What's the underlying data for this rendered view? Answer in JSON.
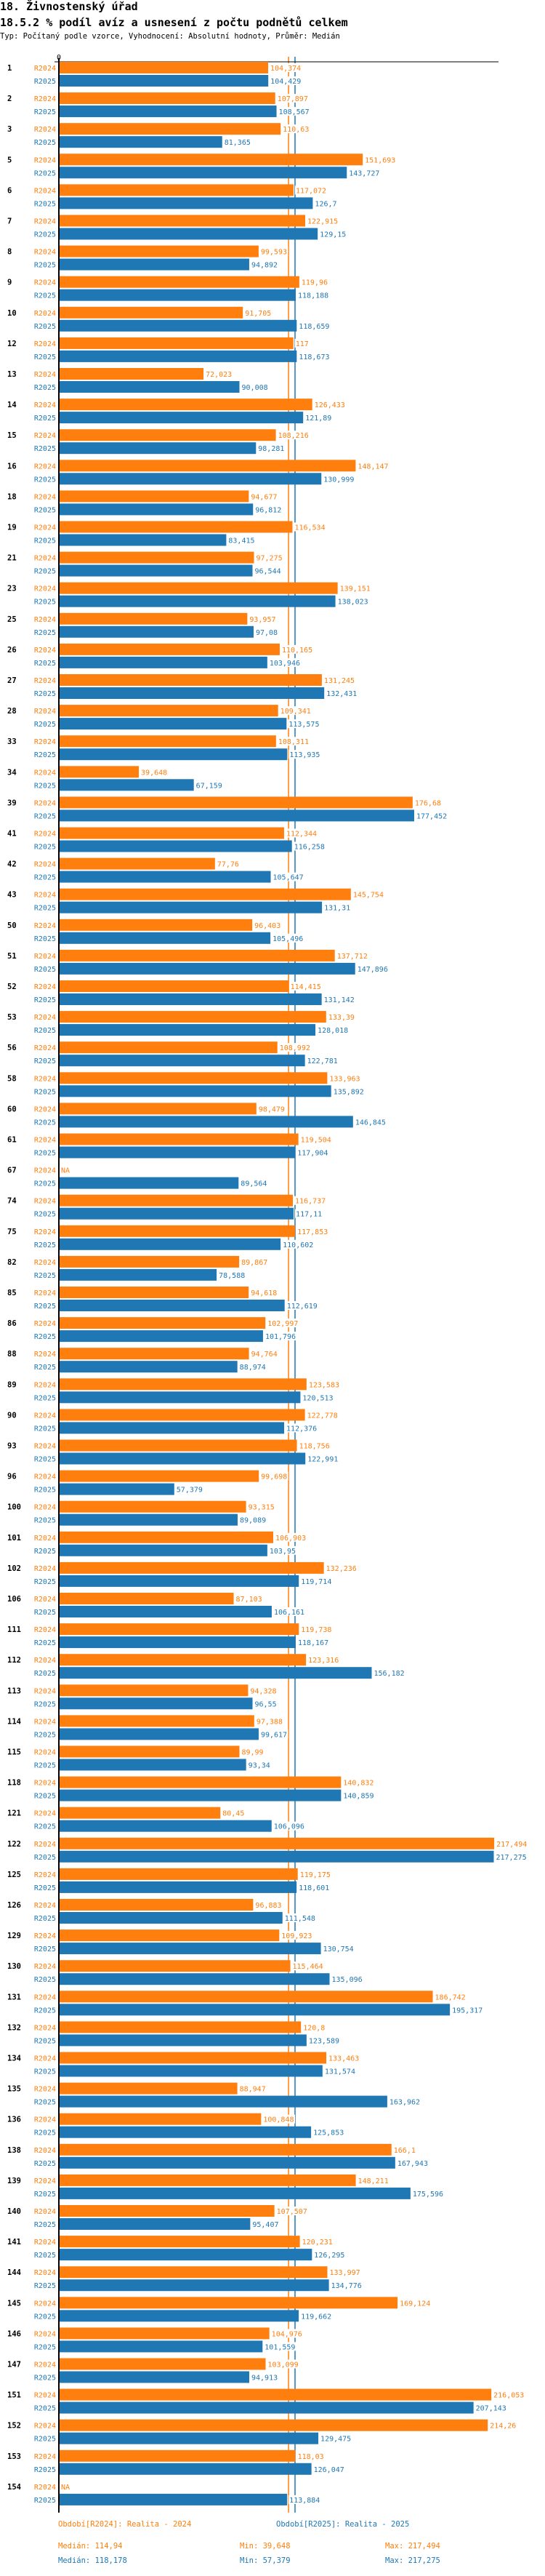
{
  "header": {
    "title": "18. Živnostenský úřad",
    "subtitle": "18.5.2 % podíl avíz a usnesení z počtu podnětů celkem",
    "meta": "Typ: Počítaný podle vzorce, Vyhodnocení: Absolutní hodnoty, Průměr: Medián"
  },
  "colors": {
    "R2024": "#ff7f0e",
    "R2025": "#1f77b4",
    "axis": "#000000"
  },
  "chart_data": {
    "type": "bar",
    "orientation": "horizontal",
    "title": "18.5.2 % podíl avíz a usnesení z počtu podnětů celkem",
    "xlabel": "",
    "ylabel": "",
    "xlim": [
      0,
      220
    ],
    "x_tick_labels": [
      "0"
    ],
    "grid": false,
    "legend_position": "bottom",
    "decimal_separator": ",",
    "series": [
      {
        "name": "R2024",
        "label": "Období[R2024]: Realita - 2024",
        "median": 114.94,
        "min": 39.648,
        "max": 217.494
      },
      {
        "name": "R2025",
        "label": "Období[R2025]: Realita - 2025",
        "median": 118.178,
        "min": 57.379,
        "max": 217.275
      }
    ],
    "categories": [
      "1",
      "2",
      "3",
      "5",
      "6",
      "7",
      "8",
      "9",
      "10",
      "12",
      "13",
      "14",
      "15",
      "16",
      "18",
      "19",
      "21",
      "23",
      "25",
      "26",
      "27",
      "28",
      "33",
      "34",
      "39",
      "41",
      "42",
      "43",
      "50",
      "51",
      "52",
      "53",
      "56",
      "58",
      "60",
      "61",
      "67",
      "74",
      "75",
      "82",
      "85",
      "86",
      "88",
      "89",
      "90",
      "93",
      "96",
      "100",
      "101",
      "102",
      "106",
      "111",
      "112",
      "113",
      "114",
      "115",
      "118",
      "121",
      "122",
      "125",
      "126",
      "129",
      "130",
      "131",
      "132",
      "134",
      "135",
      "136",
      "138",
      "139",
      "140",
      "141",
      "144",
      "145",
      "146",
      "147",
      "151",
      "152",
      "153",
      "154"
    ],
    "values": {
      "R2024": [
        104.374,
        107.897,
        110.63,
        151.693,
        117.072,
        122.915,
        99.593,
        119.96,
        91.705,
        117,
        72.023,
        126.433,
        108.216,
        148.147,
        94.677,
        116.534,
        97.275,
        139.151,
        93.957,
        110.165,
        131.245,
        109.341,
        108.311,
        39.648,
        176.68,
        112.344,
        77.76,
        145.754,
        96.403,
        137.712,
        114.415,
        133.39,
        108.992,
        133.963,
        98.479,
        119.504,
        null,
        116.737,
        117.853,
        89.867,
        94.618,
        102.997,
        94.764,
        123.583,
        122.778,
        118.756,
        99.698,
        93.315,
        106.903,
        132.236,
        87.103,
        119.738,
        123.316,
        94.328,
        97.388,
        89.99,
        140.832,
        80.45,
        217.494,
        119.175,
        96.883,
        109.923,
        115.464,
        186.742,
        120.8,
        133.463,
        88.947,
        100.848,
        166.1,
        148.211,
        107.507,
        120.231,
        133.997,
        169.124,
        104.976,
        103.099,
        216.053,
        214.26,
        118.03,
        null
      ],
      "R2025": [
        104.429,
        108.567,
        81.365,
        143.727,
        126.7,
        129.15,
        94.892,
        118.188,
        118.659,
        118.673,
        90.008,
        121.89,
        98.281,
        130.999,
        96.812,
        83.415,
        96.544,
        138.023,
        97.08,
        103.946,
        132.431,
        113.575,
        113.935,
        67.159,
        177.452,
        116.258,
        105.647,
        131.31,
        105.496,
        147.896,
        131.142,
        128.018,
        122.781,
        135.892,
        146.845,
        117.904,
        89.564,
        117.11,
        110.602,
        78.588,
        112.619,
        101.796,
        88.974,
        120.513,
        112.376,
        122.991,
        57.379,
        89.089,
        103.95,
        119.714,
        106.161,
        118.167,
        156.182,
        96.55,
        99.617,
        93.34,
        140.859,
        106.096,
        217.275,
        118.601,
        111.548,
        130.754,
        135.096,
        195.317,
        123.589,
        131.574,
        163.962,
        125.853,
        167.943,
        175.596,
        95.407,
        126.295,
        134.776,
        119.662,
        101.559,
        94.913,
        207.143,
        129.475,
        126.047,
        113.884
      ]
    },
    "na_label": "NA"
  },
  "legend": {
    "r2024_label": "Období[R2024]: Realita - 2024",
    "r2025_label": "Období[R2025]: Realita - 2025",
    "r2024_median": "Medián: 114,94",
    "r2024_min": "Min: 39,648",
    "r2024_max": "Max: 217,494",
    "r2025_median": "Medián: 118,178",
    "r2025_min": "Min: 57,379",
    "r2025_max": "Max: 217,275"
  }
}
